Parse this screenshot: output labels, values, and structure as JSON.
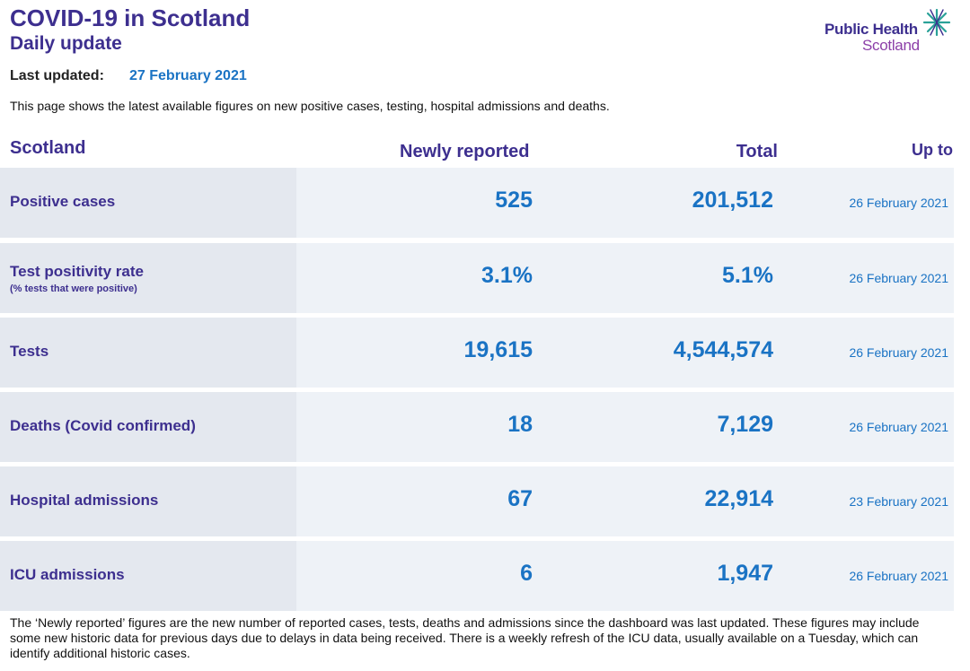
{
  "header": {
    "title": "COVID-19 in Scotland",
    "subtitle": "Daily update",
    "last_updated_label": "Last updated:",
    "last_updated_value": "27 February 2021",
    "intro": "This page shows the latest available figures on new positive cases, testing, hospital admissions and deaths."
  },
  "logo": {
    "line1": "Public Health",
    "line2": "Scotland",
    "icon": "star-burst-icon",
    "colors": {
      "text_primary": "#3d2f8f",
      "text_secondary": "#8c3fa8",
      "star": "#2aa198"
    }
  },
  "table": {
    "headers": {
      "area": "Scotland",
      "newly_reported": "Newly reported",
      "total": "Total",
      "up_to": "Up to"
    },
    "rows": [
      {
        "label": "Positive cases",
        "sublabel": "",
        "newly_reported": "525",
        "total": "201,512",
        "up_to": "26 February 2021"
      },
      {
        "label": "Test positivity rate",
        "sublabel": "(% tests that were positive)",
        "newly_reported": "3.1%",
        "total": "5.1%",
        "up_to": "26 February 2021"
      },
      {
        "label": "Tests",
        "sublabel": "",
        "newly_reported": "19,615",
        "total": "4,544,574",
        "up_to": "26 February 2021"
      },
      {
        "label": "Deaths (Covid confirmed)",
        "sublabel": "",
        "newly_reported": "18",
        "total": "7,129",
        "up_to": "26 February 2021"
      },
      {
        "label": "Hospital admissions",
        "sublabel": "",
        "newly_reported": "67",
        "total": "22,914",
        "up_to": "23 February 2021"
      },
      {
        "label": "ICU admissions",
        "sublabel": "",
        "newly_reported": "6",
        "total": "1,947",
        "up_to": "26 February 2021"
      }
    ]
  },
  "footnote": "The ‘Newly reported’ figures are the new number of reported cases, tests, deaths and admissions since the dashboard was last updated. These figures may include some new historic data for previous days due to delays in data being received. There is a weekly refresh of the ICU data, usually available on a Tuesday, which can identify additional historic cases.",
  "colors": {
    "brand_purple": "#3d2f8f",
    "value_blue": "#1a73c4",
    "label_cell_bg": "#e4e8ef",
    "row_bg": "#eef2f7"
  }
}
